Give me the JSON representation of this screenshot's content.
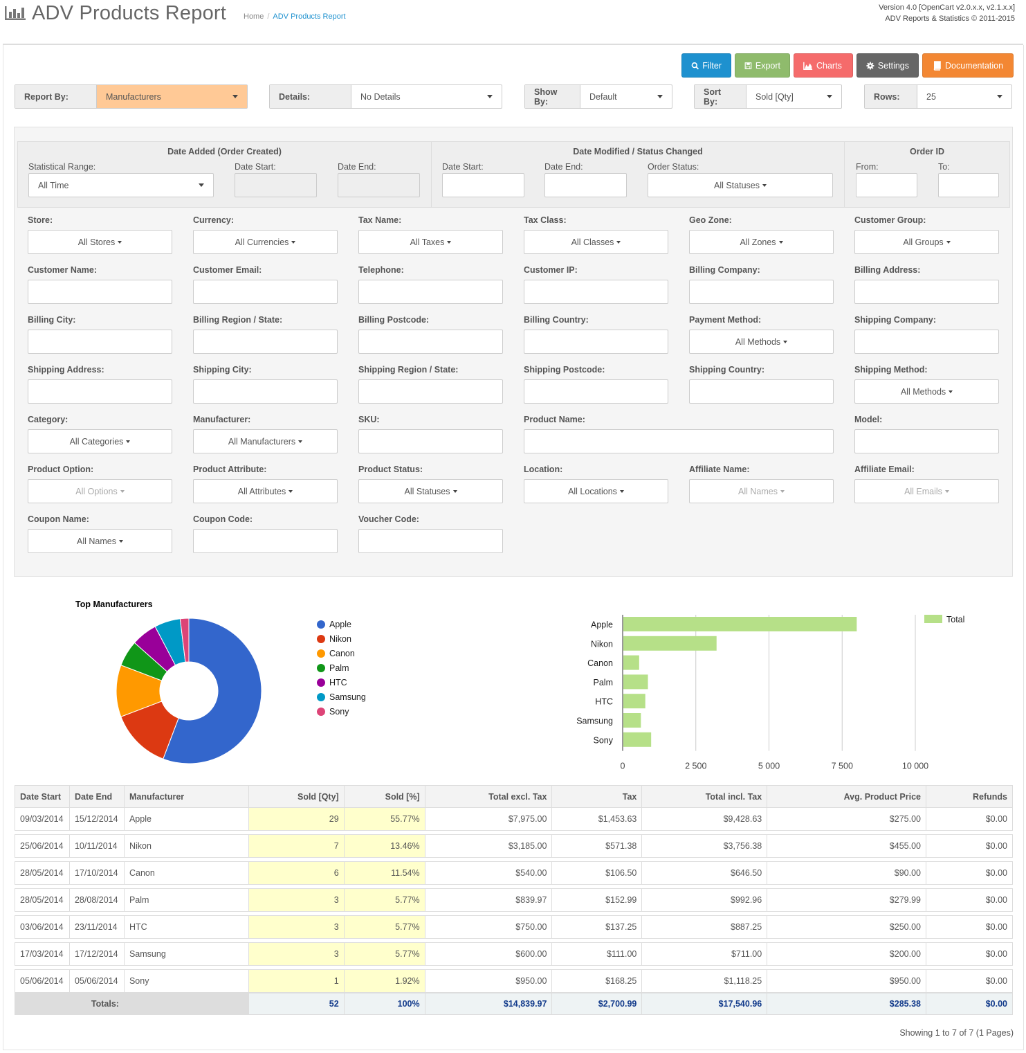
{
  "header": {
    "title": "ADV Products Report",
    "breadcrumb_home": "Home",
    "breadcrumb_current": "ADV Products Report",
    "version_line1": "Version 4.0 [OpenCart v2.0.x.x, v2.1.x.x]",
    "version_line2": "ADV Reports & Statistics © 2011-2015",
    "logo_icon": "bar-chart-icon"
  },
  "toolbar": {
    "filter": "Filter",
    "export": "Export",
    "charts": "Charts",
    "settings": "Settings",
    "documentation": "Documentation",
    "colors": {
      "filter": "#1e91cf",
      "export": "#8fbb6c",
      "charts": "#f56b6b",
      "settings": "#666666",
      "documentation": "#f38733"
    }
  },
  "selectors": {
    "report_by": {
      "label": "Report By:",
      "value": "Manufacturers"
    },
    "details": {
      "label": "Details:",
      "value": "No Details"
    },
    "show_by": {
      "label": "Show By:",
      "value": "Default"
    },
    "sort_by": {
      "label": "Sort By:",
      "value": "Sold [Qty]"
    },
    "rows": {
      "label": "Rows:",
      "value": "25"
    }
  },
  "filters": {
    "date_added": {
      "title": "Date Added (Order Created)",
      "range_label": "Statistical Range:",
      "range_value": "All Time",
      "start_label": "Date Start:",
      "end_label": "Date End:"
    },
    "date_modified": {
      "title": "Date Modified / Status Changed",
      "start_label": "Date Start:",
      "end_label": "Date End:",
      "status_label": "Order Status:",
      "status_value": "All Statuses"
    },
    "order_id": {
      "title": "Order ID",
      "from_label": "From:",
      "to_label": "To:"
    },
    "store": {
      "label": "Store:",
      "value": "All Stores"
    },
    "currency": {
      "label": "Currency:",
      "value": "All Currencies"
    },
    "tax_name": {
      "label": "Tax Name:",
      "value": "All Taxes"
    },
    "tax_class": {
      "label": "Tax Class:",
      "value": "All Classes"
    },
    "geo_zone": {
      "label": "Geo Zone:",
      "value": "All Zones"
    },
    "customer_group": {
      "label": "Customer Group:",
      "value": "All Groups"
    },
    "customer_name": {
      "label": "Customer Name:"
    },
    "customer_email": {
      "label": "Customer Email:"
    },
    "telephone": {
      "label": "Telephone:"
    },
    "customer_ip": {
      "label": "Customer IP:"
    },
    "billing_company": {
      "label": "Billing Company:"
    },
    "billing_address": {
      "label": "Billing Address:"
    },
    "billing_city": {
      "label": "Billing City:"
    },
    "billing_region": {
      "label": "Billing Region / State:"
    },
    "billing_postcode": {
      "label": "Billing Postcode:"
    },
    "billing_country": {
      "label": "Billing Country:"
    },
    "payment_method": {
      "label": "Payment Method:",
      "value": "All Methods"
    },
    "shipping_company": {
      "label": "Shipping Company:"
    },
    "shipping_address": {
      "label": "Shipping Address:"
    },
    "shipping_city": {
      "label": "Shipping City:"
    },
    "shipping_region": {
      "label": "Shipping Region / State:"
    },
    "shipping_postcode": {
      "label": "Shipping Postcode:"
    },
    "shipping_country": {
      "label": "Shipping Country:"
    },
    "shipping_method": {
      "label": "Shipping Method:",
      "value": "All Methods"
    },
    "category": {
      "label": "Category:",
      "value": "All Categories"
    },
    "manufacturer": {
      "label": "Manufacturer:",
      "value": "All Manufacturers"
    },
    "sku": {
      "label": "SKU:"
    },
    "product_name": {
      "label": "Product Name:"
    },
    "model": {
      "label": "Model:"
    },
    "product_option": {
      "label": "Product Option:",
      "value": "All Options"
    },
    "product_attribute": {
      "label": "Product Attribute:",
      "value": "All Attributes"
    },
    "product_status": {
      "label": "Product Status:",
      "value": "All Statuses"
    },
    "location": {
      "label": "Location:",
      "value": "All Locations"
    },
    "affiliate_name": {
      "label": "Affiliate Name:",
      "value": "All Names"
    },
    "affiliate_email": {
      "label": "Affiliate Email:",
      "value": "All Emails"
    },
    "coupon_name": {
      "label": "Coupon Name:",
      "value": "All Names"
    },
    "coupon_code": {
      "label": "Coupon Code:"
    },
    "voucher_code": {
      "label": "Voucher Code:"
    }
  },
  "chart_data": [
    {
      "type": "pie",
      "title": "Top Manufacturers",
      "donut": true,
      "legend_position": "right",
      "categories": [
        "Apple",
        "Nikon",
        "Canon",
        "Palm",
        "HTC",
        "Samsung",
        "Sony"
      ],
      "values": [
        29,
        7,
        6,
        3,
        3,
        3,
        1
      ],
      "colors": [
        "#3366cc",
        "#dc3912",
        "#ff9900",
        "#109618",
        "#990099",
        "#0099c6",
        "#dd4477"
      ]
    },
    {
      "type": "bar",
      "orientation": "horizontal",
      "categories": [
        "Apple",
        "Nikon",
        "Canon",
        "Palm",
        "HTC",
        "Samsung",
        "Sony"
      ],
      "series": [
        {
          "name": "Total",
          "values": [
            7975,
            3185,
            540,
            839.97,
            750,
            600,
            950
          ],
          "color": "#b6e088"
        }
      ],
      "xlim": [
        0,
        10000
      ],
      "xticks": [
        "0",
        "2 500",
        "5 000",
        "7 500",
        "10 000"
      ],
      "legend_position": "top-right",
      "grid": true
    }
  ],
  "table": {
    "headers": [
      "Date Start",
      "Date End",
      "Manufacturer",
      "Sold [Qty]",
      "Sold [%]",
      "Total excl. Tax",
      "Tax",
      "Total incl. Tax",
      "Avg. Product Price",
      "Refunds"
    ],
    "rows": [
      [
        "09/03/2014",
        "15/12/2014",
        "Apple",
        "29",
        "55.77%",
        "$7,975.00",
        "$1,453.63",
        "$9,428.63",
        "$275.00",
        "$0.00"
      ],
      [
        "25/06/2014",
        "10/11/2014",
        "Nikon",
        "7",
        "13.46%",
        "$3,185.00",
        "$571.38",
        "$3,756.38",
        "$455.00",
        "$0.00"
      ],
      [
        "28/05/2014",
        "17/10/2014",
        "Canon",
        "6",
        "11.54%",
        "$540.00",
        "$106.50",
        "$646.50",
        "$90.00",
        "$0.00"
      ],
      [
        "28/05/2014",
        "28/08/2014",
        "Palm",
        "3",
        "5.77%",
        "$839.97",
        "$152.99",
        "$992.96",
        "$279.99",
        "$0.00"
      ],
      [
        "03/06/2014",
        "23/11/2014",
        "HTC",
        "3",
        "5.77%",
        "$750.00",
        "$137.25",
        "$887.25",
        "$250.00",
        "$0.00"
      ],
      [
        "17/03/2014",
        "17/12/2014",
        "Samsung",
        "3",
        "5.77%",
        "$600.00",
        "$111.00",
        "$711.00",
        "$200.00",
        "$0.00"
      ],
      [
        "05/06/2014",
        "05/06/2014",
        "Sony",
        "1",
        "1.92%",
        "$950.00",
        "$168.25",
        "$1,118.25",
        "$950.00",
        "$0.00"
      ]
    ],
    "totals": {
      "label": "Totals:",
      "qty": "52",
      "pct": "100%",
      "excl": "$14,839.97",
      "tax": "$2,700.99",
      "incl": "$17,540.96",
      "avg": "$285.38",
      "refunds": "$0.00"
    }
  },
  "pagination": {
    "summary": "Showing 1 to 7 of 7 (1 Pages)"
  }
}
